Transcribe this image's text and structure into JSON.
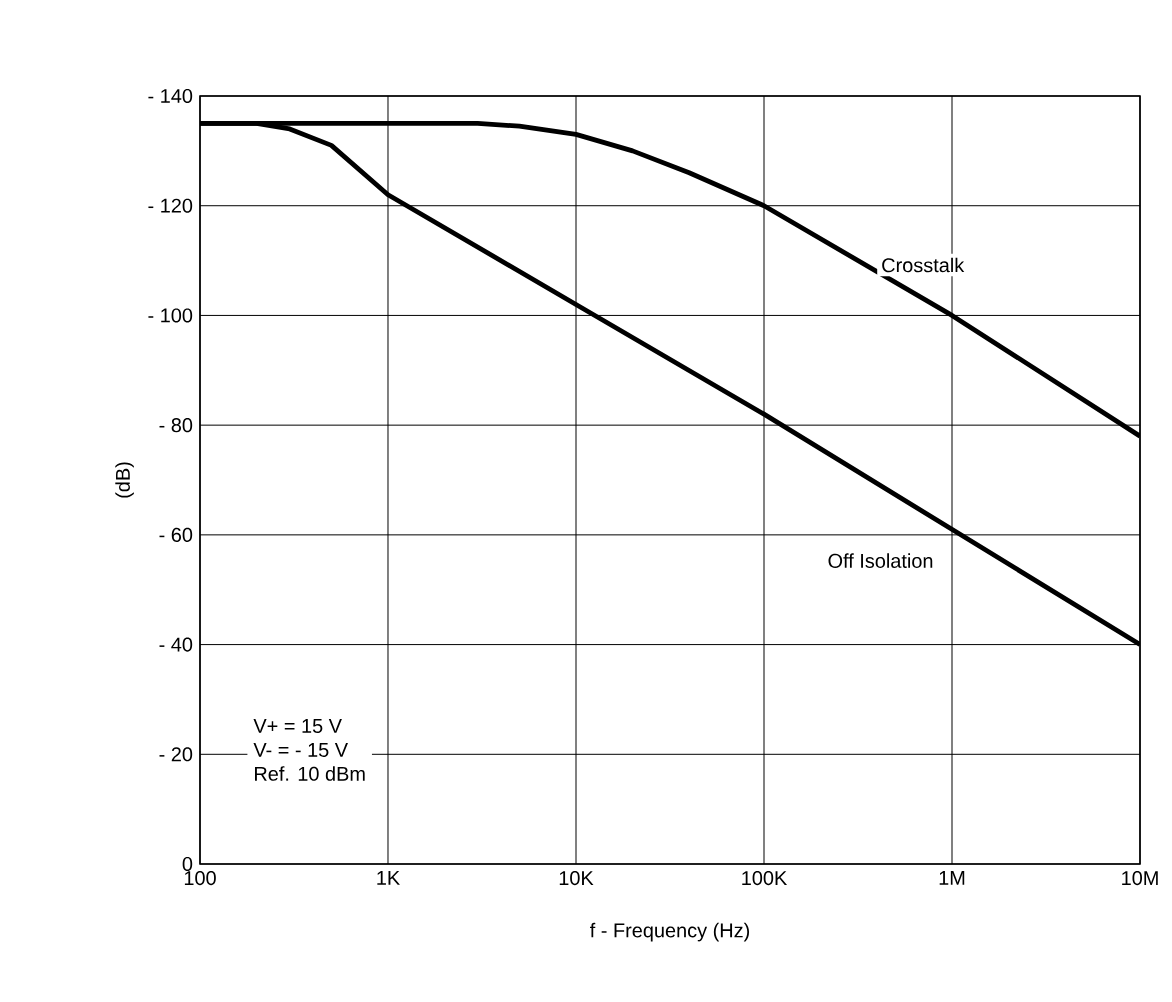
{
  "chart_data": {
    "type": "line",
    "xlabel": "f - Frequency (Hz)",
    "ylabel": "(dB)",
    "log": "x",
    "xlim": [
      100,
      10000000
    ],
    "ylim": [
      0,
      -140
    ],
    "xticks": [
      {
        "value": 100,
        "label": "100"
      },
      {
        "value": 1000,
        "label": "1K"
      },
      {
        "value": 10000,
        "label": "10K"
      },
      {
        "value": 100000,
        "label": "100K"
      },
      {
        "value": 1000000,
        "label": "1M"
      },
      {
        "value": 10000000,
        "label": "10M"
      }
    ],
    "yticks": [
      {
        "value": 0,
        "label": "0"
      },
      {
        "value": -20,
        "label": "- 20"
      },
      {
        "value": -40,
        "label": "- 40"
      },
      {
        "value": -60,
        "label": "- 60"
      },
      {
        "value": -80,
        "label": "- 80"
      },
      {
        "value": -100,
        "label": "- 100"
      },
      {
        "value": -120,
        "label": "- 120"
      },
      {
        "value": -140,
        "label": "- 140"
      }
    ],
    "grid": true,
    "legend": false,
    "series": [
      {
        "name": "Crosstalk",
        "color": "#000000",
        "x": [
          100,
          1000,
          3000,
          5000,
          10000,
          20000,
          40000,
          100000,
          1000000,
          10000000
        ],
        "values": [
          -135,
          -135,
          -135,
          -134.5,
          -133,
          -130,
          -126,
          -120,
          -100,
          -78
        ]
      },
      {
        "name": "Off Isolation",
        "color": "#000000",
        "x": [
          100,
          200,
          300,
          500,
          1000,
          10000,
          100000,
          1000000,
          10000000
        ],
        "values": [
          -135,
          -135,
          -134,
          -131,
          -122,
          -102,
          -82,
          -61,
          -40
        ]
      }
    ],
    "annotations": [
      "V+ = 15 V",
      "V- = - 15 V",
      "Ref. 10 dBm"
    ]
  }
}
